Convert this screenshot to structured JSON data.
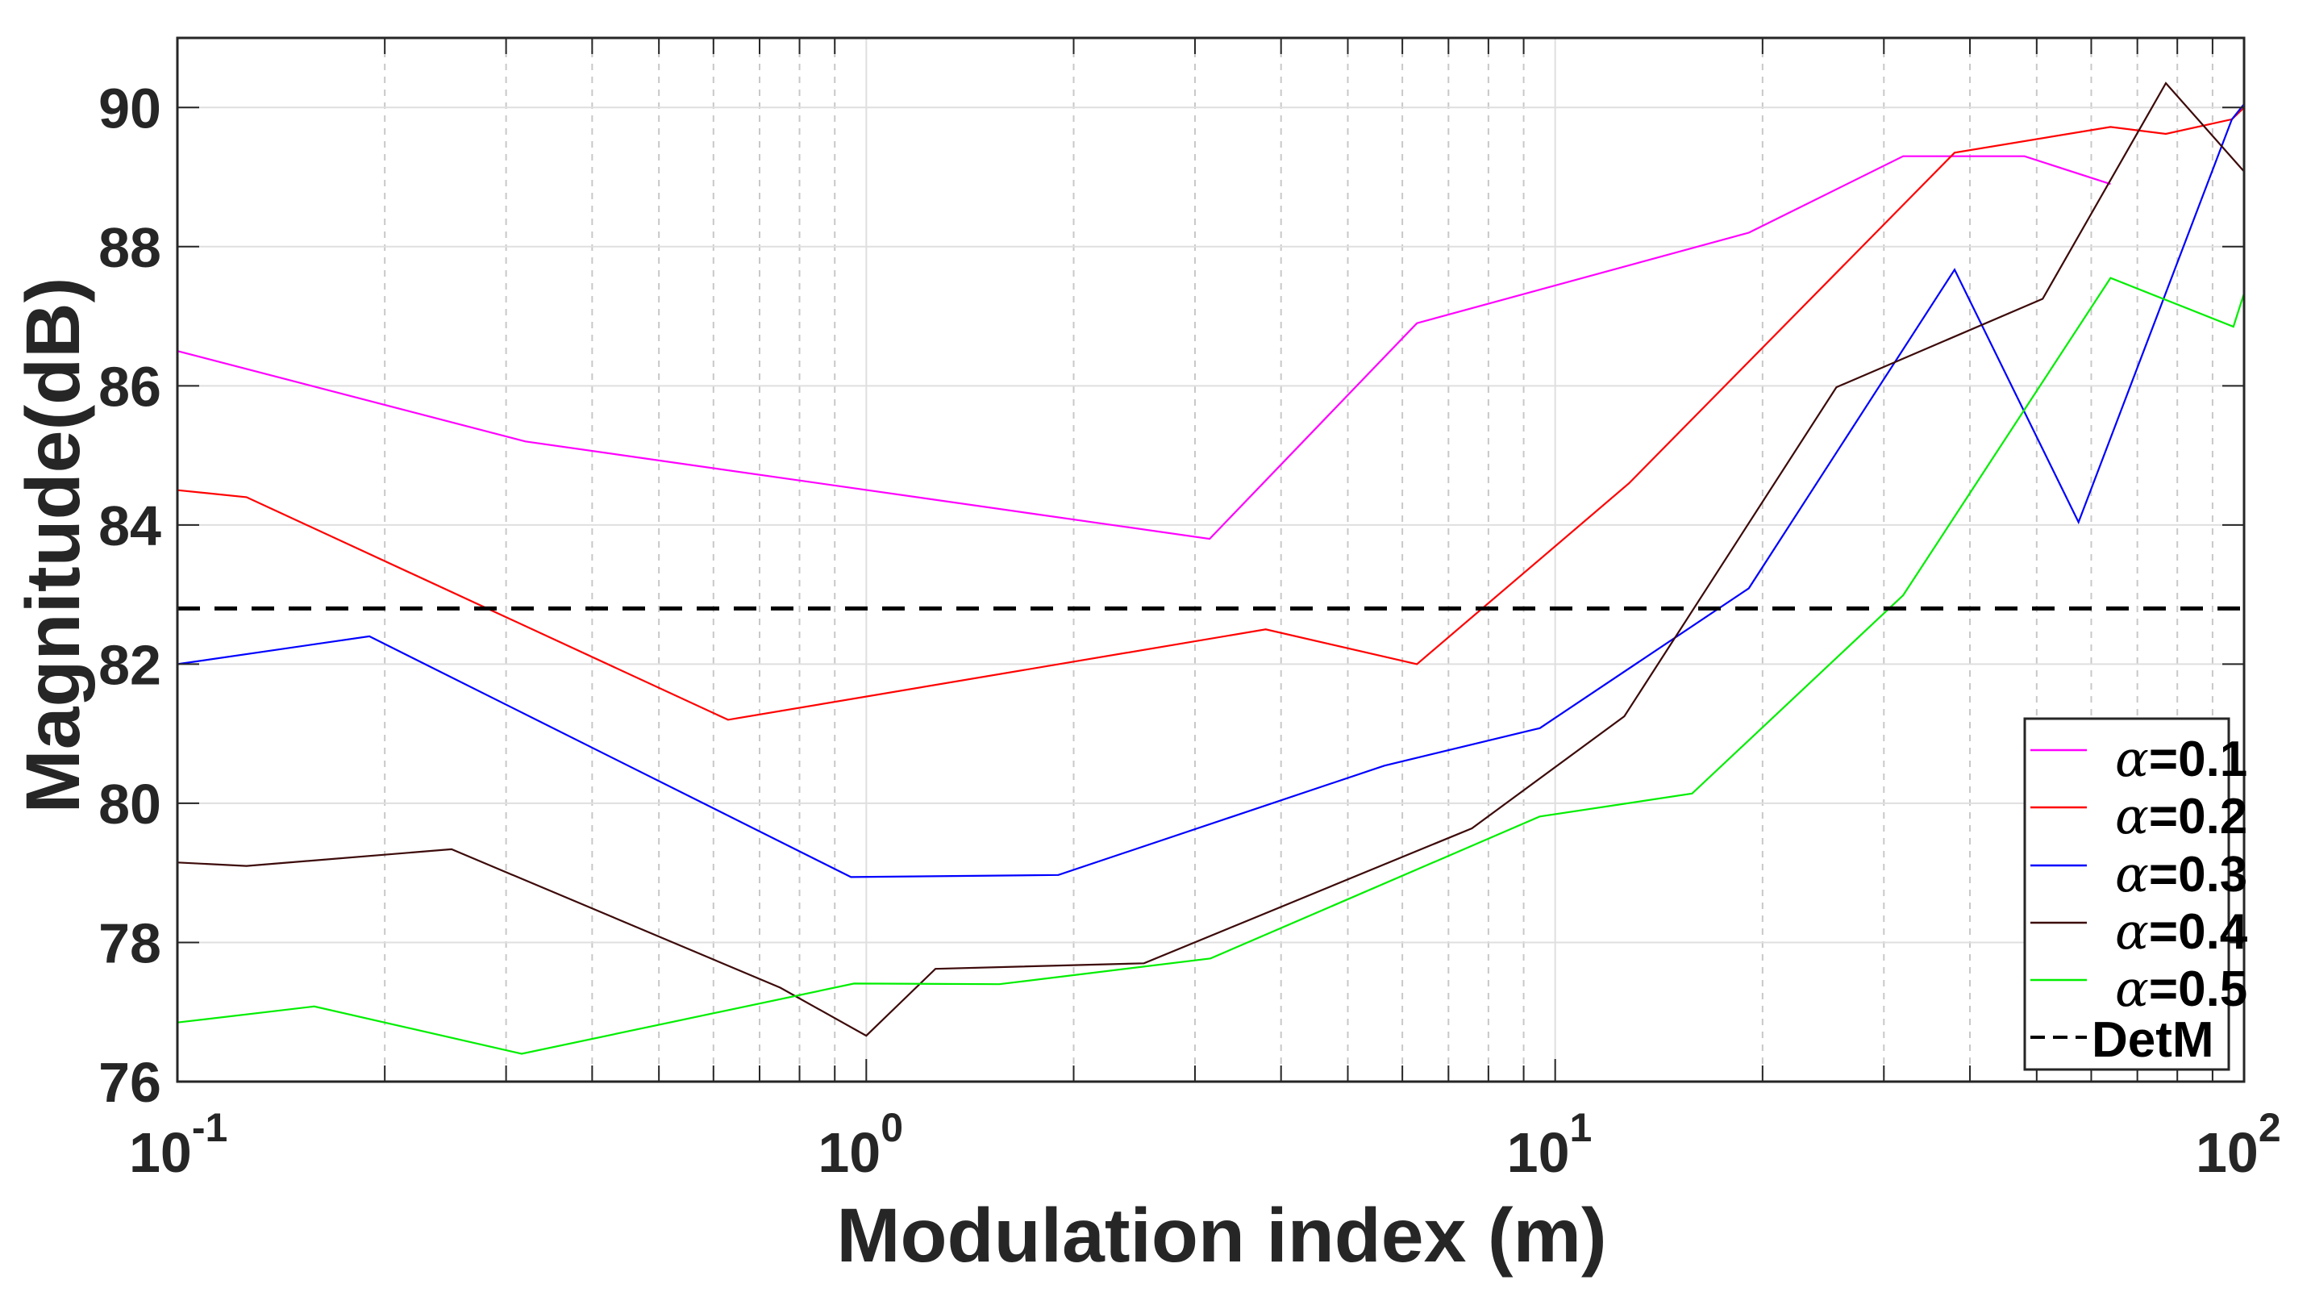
{
  "chart_data": {
    "type": "line",
    "title": "",
    "xlabel": "Modulation index (m)",
    "ylabel": "Magnitude(dB)",
    "xscale": "log",
    "xlim": [
      0.1,
      100
    ],
    "ylim": [
      76,
      91
    ],
    "xticks": [
      {
        "value": 0.1,
        "base": "10",
        "exp": "-1"
      },
      {
        "value": 1,
        "base": "10",
        "exp": "0"
      },
      {
        "value": 10,
        "base": "10",
        "exp": "1"
      },
      {
        "value": 100,
        "base": "10",
        "exp": "2"
      }
    ],
    "yticks": [
      76,
      78,
      80,
      82,
      84,
      86,
      88,
      90
    ],
    "grid": {
      "major": true,
      "minor_x": true
    },
    "legend_position": "lower right",
    "series": [
      {
        "name": "α=0.1",
        "symbol": "α",
        "label_value": "=0.1",
        "color": "#ff00ff",
        "dashed": false,
        "x": [
          0.1,
          0.32,
          3.15,
          6.3,
          19.1,
          32,
          48,
          64
        ],
        "y": [
          86.5,
          85.2,
          83.8,
          86.9,
          88.2,
          89.3,
          89.3,
          88.9
        ]
      },
      {
        "name": "α=0.2",
        "symbol": "α",
        "label_value": "=0.2",
        "color": "#ff0000",
        "dashed": false,
        "x": [
          0.1,
          0.126,
          0.63,
          3.8,
          6.3,
          12.8,
          38,
          64,
          77,
          96,
          100
        ],
        "y": [
          84.5,
          84.4,
          81.2,
          82.5,
          82.0,
          84.6,
          89.35,
          89.72,
          89.62,
          89.83,
          90.0
        ]
      },
      {
        "name": "α=0.3",
        "symbol": "α",
        "label_value": "=0.3",
        "color": "#0000ff",
        "dashed": false,
        "x": [
          0.1,
          0.19,
          0.95,
          1.9,
          5.65,
          9.5,
          19.1,
          38,
          57.5,
          96,
          100
        ],
        "y": [
          82.0,
          82.4,
          78.94,
          78.97,
          80.54,
          81.08,
          83.09,
          87.67,
          84.04,
          89.83,
          90.05
        ]
      },
      {
        "name": "α=0.4",
        "symbol": "α",
        "label_value": "=0.4",
        "color": "#3d0a0a",
        "dashed": false,
        "x": [
          0.1,
          0.126,
          0.25,
          0.75,
          1.0,
          1.26,
          2.53,
          7.57,
          12.6,
          25.6,
          51,
          77,
          100
        ],
        "y": [
          79.15,
          79.1,
          79.34,
          77.35,
          76.66,
          77.62,
          77.7,
          79.64,
          81.25,
          85.98,
          87.25,
          90.35,
          89.08
        ]
      },
      {
        "name": "α=0.5",
        "symbol": "α",
        "label_value": "=0.5",
        "color": "#00ee00",
        "dashed": false,
        "x": [
          0.1,
          0.158,
          0.316,
          0.96,
          1.56,
          3.16,
          9.5,
          15.8,
          32,
          64,
          96.5,
          100
        ],
        "y": [
          76.85,
          77.08,
          76.4,
          77.41,
          77.4,
          77.77,
          79.81,
          80.14,
          82.99,
          87.55,
          86.85,
          87.33
        ]
      },
      {
        "name": "DetM",
        "symbol": "",
        "label_value": "DetM",
        "color": "#000000",
        "dashed": true,
        "x": [
          0.1,
          100
        ],
        "y": [
          82.8,
          82.8
        ]
      }
    ]
  },
  "colors": {
    "axis": "#262626",
    "grid": "#dfdfdf",
    "minor_grid": "#c8c8c8",
    "background": "#ffffff"
  }
}
